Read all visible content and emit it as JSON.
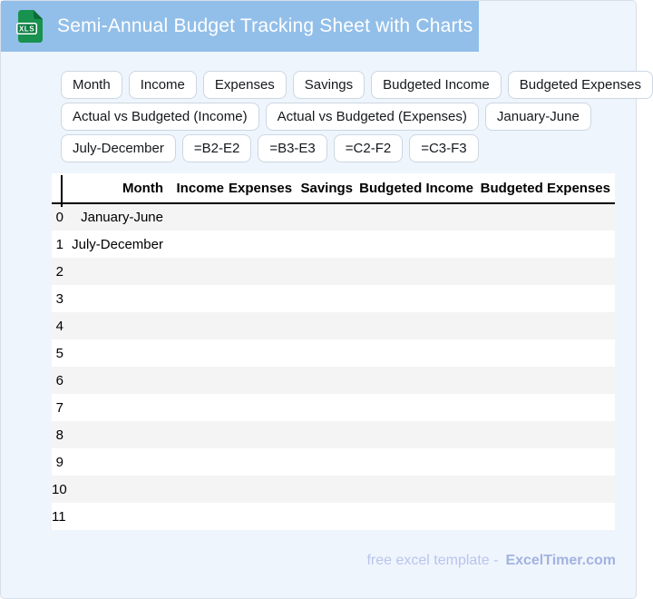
{
  "header": {
    "title": "Semi-Annual Budget Tracking Sheet with Charts",
    "file_badge": "XLS"
  },
  "chips": {
    "rows": [
      [
        "Month",
        "Income",
        "Expenses",
        "Savings",
        "Budgeted Income",
        "Budgeted Expenses"
      ],
      [
        "Actual vs Budgeted (Income)",
        "Actual vs Budgeted (Expenses)",
        "January-June"
      ],
      [
        "July-December",
        "=B2-E2",
        "=B3-E3",
        "=C2-F2",
        "=C3-F3"
      ]
    ]
  },
  "table": {
    "columns": [
      "Month",
      "Income",
      "Expenses",
      "Savings",
      "Budgeted Income",
      "Budgeted Expenses"
    ],
    "rows": [
      {
        "index": "0",
        "cells": [
          "January-June",
          "",
          "",
          "",
          "",
          ""
        ]
      },
      {
        "index": "1",
        "cells": [
          "July-December",
          "",
          "",
          "",
          "",
          ""
        ]
      },
      {
        "index": "2",
        "cells": [
          "",
          "",
          "",
          "",
          "",
          ""
        ]
      },
      {
        "index": "3",
        "cells": [
          "",
          "",
          "",
          "",
          "",
          ""
        ]
      },
      {
        "index": "4",
        "cells": [
          "",
          "",
          "",
          "",
          "",
          ""
        ]
      },
      {
        "index": "5",
        "cells": [
          "",
          "",
          "",
          "",
          "",
          ""
        ]
      },
      {
        "index": "6",
        "cells": [
          "",
          "",
          "",
          "",
          "",
          ""
        ]
      },
      {
        "index": "7",
        "cells": [
          "",
          "",
          "",
          "",
          "",
          ""
        ]
      },
      {
        "index": "8",
        "cells": [
          "",
          "",
          "",
          "",
          "",
          ""
        ]
      },
      {
        "index": "9",
        "cells": [
          "",
          "",
          "",
          "",
          "",
          ""
        ]
      },
      {
        "index": "10",
        "cells": [
          "",
          "",
          "",
          "",
          "",
          ""
        ]
      },
      {
        "index": "11",
        "cells": [
          "",
          "",
          "",
          "",
          "",
          ""
        ]
      }
    ]
  },
  "footer": {
    "text": "free excel template -",
    "brand": "ExcelTimer.com"
  },
  "colors": {
    "header_bar": "#92bfe9",
    "page_bg": "#eff5fc",
    "card_border": "#d7dfe9",
    "row_stripe": "#f4f4f4",
    "chip_border": "#ccd7e3",
    "footer_text": "#b9c4ef",
    "footer_brand": "#a2b2e2",
    "icon_green": "#18924e",
    "icon_badge": "#0b7d42"
  }
}
